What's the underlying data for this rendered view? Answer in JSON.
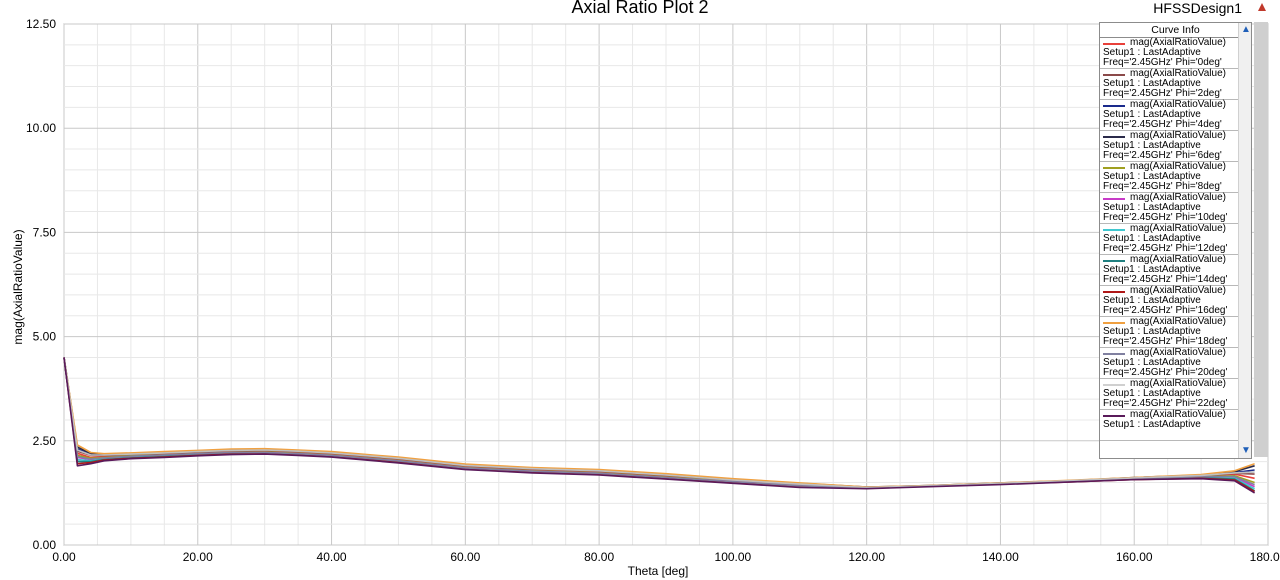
{
  "header": {
    "title": "Axial Ratio Plot 2",
    "design_name": "HFSSDesign1"
  },
  "legend": {
    "title": "Curve Info",
    "entries": [
      {
        "l1": "mag(AxialRatioValue)",
        "l2": "Setup1 : LastAdaptive",
        "l3": "Freq='2.45GHz' Phi='0deg'",
        "color": "#e8403a"
      },
      {
        "l1": "mag(AxialRatioValue)",
        "l2": "Setup1 : LastAdaptive",
        "l3": "Freq='2.45GHz' Phi='2deg'",
        "color": "#8b4a4a"
      },
      {
        "l1": "mag(AxialRatioValue)",
        "l2": "Setup1 : LastAdaptive",
        "l3": "Freq='2.45GHz' Phi='4deg'",
        "color": "#1a2a8c"
      },
      {
        "l1": "mag(AxialRatioValue)",
        "l2": "Setup1 : LastAdaptive",
        "l3": "Freq='2.45GHz' Phi='6deg'",
        "color": "#2a2a4a"
      },
      {
        "l1": "mag(AxialRatioValue)",
        "l2": "Setup1 : LastAdaptive",
        "l3": "Freq='2.45GHz' Phi='8deg'",
        "color": "#a0a020"
      },
      {
        "l1": "mag(AxialRatioValue)",
        "l2": "Setup1 : LastAdaptive",
        "l3": "Freq='2.45GHz' Phi='10deg'",
        "color": "#c83cc8"
      },
      {
        "l1": "mag(AxialRatioValue)",
        "l2": "Setup1 : LastAdaptive",
        "l3": "Freq='2.45GHz' Phi='12deg'",
        "color": "#40c8d0"
      },
      {
        "l1": "mag(AxialRatioValue)",
        "l2": "Setup1 : LastAdaptive",
        "l3": "Freq='2.45GHz' Phi='14deg'",
        "color": "#208080"
      },
      {
        "l1": "mag(AxialRatioValue)",
        "l2": "Setup1 : LastAdaptive",
        "l3": "Freq='2.45GHz' Phi='16deg'",
        "color": "#b01818"
      },
      {
        "l1": "mag(AxialRatioValue)",
        "l2": "Setup1 : LastAdaptive",
        "l3": "Freq='2.45GHz' Phi='18deg'",
        "color": "#f0a040"
      },
      {
        "l1": "mag(AxialRatioValue)",
        "l2": "Setup1 : LastAdaptive",
        "l3": "Freq='2.45GHz' Phi='20deg'",
        "color": "#8080a0"
      },
      {
        "l1": "mag(AxialRatioValue)",
        "l2": "Setup1 : LastAdaptive",
        "l3": "Freq='2.45GHz' Phi='22deg'",
        "color": "#d0d0d0"
      },
      {
        "l1": "mag(AxialRatioValue)",
        "l2": "Setup1 : LastAdaptive",
        "l3": "",
        "color": "#5a1a5a"
      }
    ]
  },
  "chart_data": {
    "type": "line",
    "title": "Axial Ratio Plot 2",
    "xlabel": "Theta [deg]",
    "ylabel": "mag(AxialRatioValue)",
    "xlim": [
      0,
      180
    ],
    "ylim": [
      0,
      12.5
    ],
    "x_ticks": [
      "0.00",
      "20.00",
      "40.00",
      "60.00",
      "80.00",
      "100.00",
      "120.00",
      "140.00",
      "160.00",
      "180.00"
    ],
    "y_ticks": [
      "0.00",
      "2.50",
      "5.00",
      "7.50",
      "10.00",
      "12.50"
    ],
    "x_tick_values": [
      0,
      20,
      40,
      60,
      80,
      100,
      120,
      140,
      160,
      180
    ],
    "y_tick_values": [
      0,
      2.5,
      5,
      7.5,
      10,
      12.5
    ],
    "grid": true,
    "legend_position": "top-right",
    "x": [
      0,
      2,
      4,
      6,
      10,
      15,
      20,
      25,
      30,
      35,
      40,
      50,
      60,
      70,
      80,
      90,
      100,
      110,
      120,
      130,
      140,
      150,
      160,
      170,
      175,
      178
    ],
    "series": [
      {
        "name": "Freq='2.45GHz' Phi='0deg'",
        "color": "#e8403a",
        "values": [
          4.5,
          2.2,
          2.1,
          2.12,
          2.15,
          2.17,
          2.2,
          2.24,
          2.25,
          2.22,
          2.18,
          2.05,
          1.88,
          1.8,
          1.75,
          1.65,
          1.55,
          1.45,
          1.38,
          1.42,
          1.48,
          1.53,
          1.6,
          1.65,
          1.7,
          1.6
        ]
      },
      {
        "name": "Freq='2.45GHz' Phi='2deg'",
        "color": "#8b4a4a",
        "values": [
          4.5,
          2.25,
          2.15,
          2.15,
          2.17,
          2.2,
          2.23,
          2.26,
          2.27,
          2.24,
          2.2,
          2.07,
          1.9,
          1.82,
          1.77,
          1.67,
          1.56,
          1.46,
          1.38,
          1.42,
          1.48,
          1.53,
          1.6,
          1.66,
          1.72,
          1.7
        ]
      },
      {
        "name": "Freq='2.45GHz' Phi='4deg'",
        "color": "#1a2a8c",
        "values": [
          4.5,
          2.3,
          2.18,
          2.17,
          2.19,
          2.22,
          2.25,
          2.28,
          2.29,
          2.26,
          2.22,
          2.09,
          1.92,
          1.84,
          1.79,
          1.69,
          1.57,
          1.47,
          1.38,
          1.42,
          1.48,
          1.54,
          1.61,
          1.67,
          1.74,
          1.8
        ]
      },
      {
        "name": "Freq='2.45GHz' Phi='6deg'",
        "color": "#2a2a4a",
        "values": [
          4.5,
          2.35,
          2.2,
          2.18,
          2.2,
          2.23,
          2.26,
          2.29,
          2.3,
          2.27,
          2.23,
          2.1,
          1.93,
          1.85,
          1.8,
          1.7,
          1.58,
          1.48,
          1.39,
          1.43,
          1.49,
          1.54,
          1.62,
          1.68,
          1.76,
          1.9
        ]
      },
      {
        "name": "Freq='2.45GHz' Phi='8deg'",
        "color": "#a0a020",
        "values": [
          4.5,
          2.15,
          2.08,
          2.1,
          2.14,
          2.16,
          2.19,
          2.22,
          2.23,
          2.2,
          2.16,
          2.03,
          1.86,
          1.78,
          1.73,
          1.63,
          1.53,
          1.43,
          1.38,
          1.42,
          1.47,
          1.53,
          1.6,
          1.64,
          1.66,
          1.5
        ]
      },
      {
        "name": "Freq='2.45GHz' Phi='10deg'",
        "color": "#c83cc8",
        "values": [
          4.5,
          2.1,
          2.05,
          2.08,
          2.12,
          2.15,
          2.18,
          2.21,
          2.22,
          2.19,
          2.15,
          2.02,
          1.85,
          1.77,
          1.72,
          1.62,
          1.52,
          1.42,
          1.37,
          1.42,
          1.47,
          1.52,
          1.59,
          1.63,
          1.62,
          1.4
        ]
      },
      {
        "name": "Freq='2.45GHz' Phi='12deg'",
        "color": "#40c8d0",
        "values": [
          4.5,
          2.05,
          2.02,
          2.06,
          2.1,
          2.13,
          2.17,
          2.2,
          2.21,
          2.18,
          2.14,
          2.0,
          1.84,
          1.76,
          1.71,
          1.61,
          1.51,
          1.41,
          1.37,
          1.41,
          1.47,
          1.52,
          1.58,
          1.62,
          1.6,
          1.35
        ]
      },
      {
        "name": "Freq='2.45GHz' Phi='14deg'",
        "color": "#208080",
        "values": [
          4.5,
          2.0,
          2.0,
          2.05,
          2.09,
          2.12,
          2.16,
          2.19,
          2.2,
          2.17,
          2.13,
          1.99,
          1.83,
          1.75,
          1.7,
          1.6,
          1.5,
          1.4,
          1.36,
          1.41,
          1.46,
          1.52,
          1.58,
          1.61,
          1.58,
          1.3
        ]
      },
      {
        "name": "Freq='2.45GHz' Phi='16deg'",
        "color": "#b01818",
        "values": [
          4.5,
          1.95,
          1.98,
          2.04,
          2.08,
          2.11,
          2.15,
          2.18,
          2.19,
          2.16,
          2.12,
          1.98,
          1.82,
          1.74,
          1.69,
          1.59,
          1.49,
          1.39,
          1.36,
          1.41,
          1.46,
          1.51,
          1.57,
          1.6,
          1.56,
          1.28
        ]
      },
      {
        "name": "Freq='2.45GHz' Phi='18deg'",
        "color": "#f0a040",
        "values": [
          4.5,
          2.4,
          2.22,
          2.19,
          2.21,
          2.24,
          2.27,
          2.3,
          2.31,
          2.28,
          2.24,
          2.11,
          1.94,
          1.86,
          1.81,
          1.71,
          1.59,
          1.49,
          1.39,
          1.43,
          1.49,
          1.55,
          1.62,
          1.69,
          1.78,
          1.95
        ]
      },
      {
        "name": "Freq='2.45GHz' Phi='20deg'",
        "color": "#8080a0",
        "values": [
          4.5,
          2.12,
          2.06,
          2.09,
          2.13,
          2.16,
          2.19,
          2.22,
          2.22,
          2.19,
          2.15,
          2.02,
          1.85,
          1.77,
          1.72,
          1.62,
          1.52,
          1.42,
          1.37,
          1.42,
          1.47,
          1.53,
          1.59,
          1.64,
          1.64,
          1.45
        ]
      },
      {
        "name": "Freq='2.45GHz' Phi='22deg'",
        "color": "#c0c0c0",
        "values": [
          4.5,
          2.28,
          2.16,
          2.16,
          2.18,
          2.21,
          2.24,
          2.27,
          2.28,
          2.25,
          2.21,
          2.08,
          1.91,
          1.83,
          1.78,
          1.68,
          1.56,
          1.46,
          1.38,
          1.42,
          1.48,
          1.54,
          1.61,
          1.67,
          1.73,
          1.75
        ]
      },
      {
        "name": "",
        "color": "#5a1a5a",
        "values": [
          4.5,
          1.9,
          1.95,
          2.02,
          2.07,
          2.1,
          2.14,
          2.17,
          2.18,
          2.15,
          2.11,
          1.97,
          1.81,
          1.73,
          1.68,
          1.58,
          1.48,
          1.38,
          1.35,
          1.4,
          1.45,
          1.51,
          1.57,
          1.59,
          1.54,
          1.25
        ]
      }
    ]
  }
}
